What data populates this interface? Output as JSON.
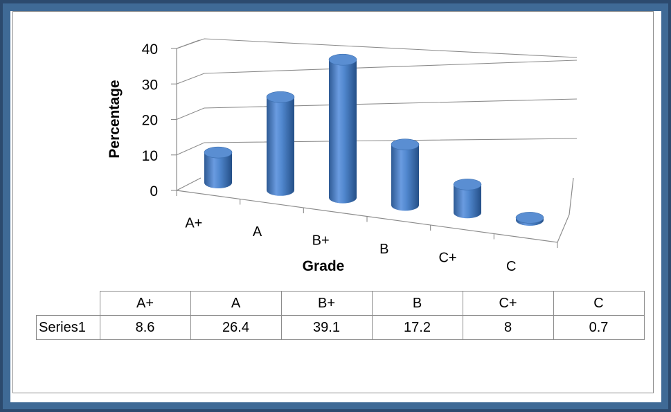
{
  "chart_data": {
    "type": "bar",
    "categories": [
      "A+",
      "A",
      "B+",
      "B",
      "C+",
      "C"
    ],
    "series": [
      {
        "name": "Series1",
        "values": [
          8.6,
          26.4,
          39.1,
          17.2,
          8,
          0.7
        ]
      }
    ],
    "xlabel": "Grade",
    "ylabel": "Percentage",
    "ylim": [
      0,
      40
    ],
    "yticks": [
      "0",
      "10",
      "20",
      "30",
      "40"
    ],
    "grid": true,
    "data_table": true,
    "bar_color": "#4a7ebf"
  }
}
